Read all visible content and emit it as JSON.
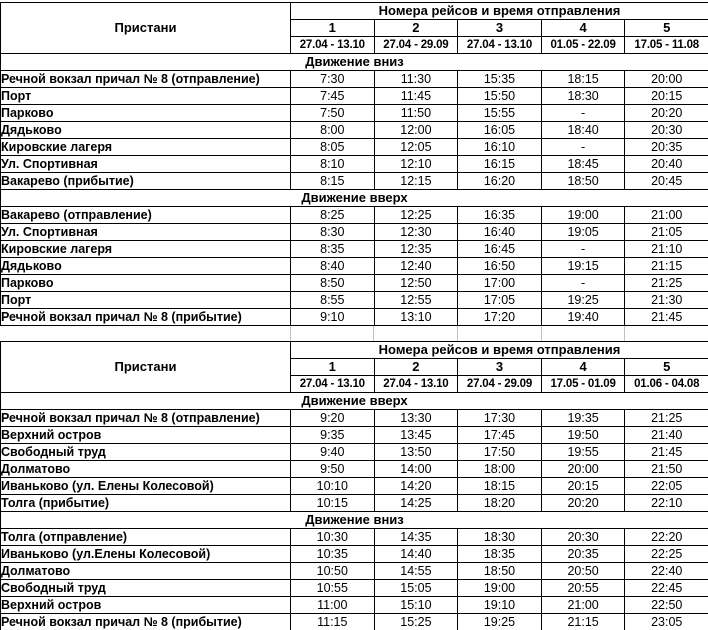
{
  "page": {
    "background": "#ffffff",
    "text_color": "#000000",
    "border_color": "#000000",
    "gap_gridline_color": "#c0c0c0"
  },
  "tables": [
    {
      "corner_label": "Пристани",
      "header_title": "Номера рейсов и время отправления",
      "trip_numbers": [
        "1",
        "2",
        "3",
        "4",
        "5"
      ],
      "date_ranges": [
        "27.04 - 13.10",
        "27.04 - 29.09",
        "27.04 - 13.10",
        "01.05 - 22.09",
        "17.05 - 11.08"
      ],
      "sections": [
        {
          "title": "Движение вниз",
          "rows": [
            {
              "station": "Речной вокзал причал № 8 (отправление)",
              "times": [
                "7:30",
                "11:30",
                "15:35",
                "18:15",
                "20:00"
              ]
            },
            {
              "station": "Порт",
              "times": [
                "7:45",
                "11:45",
                "15:50",
                "18:30",
                "20:15"
              ]
            },
            {
              "station": "Парково",
              "times": [
                "7:50",
                "11:50",
                "15:55",
                "-",
                "20:20"
              ]
            },
            {
              "station": "Дядьково",
              "times": [
                "8:00",
                "12:00",
                "16:05",
                "18:40",
                "20:30"
              ]
            },
            {
              "station": "Кировские лагеря",
              "times": [
                "8:05",
                "12:05",
                "16:10",
                "-",
                "20:35"
              ]
            },
            {
              "station": "Ул. Спортивная",
              "times": [
                "8:10",
                "12:10",
                "16:15",
                "18:45",
                "20:40"
              ]
            },
            {
              "station": "Вакарево (прибытие)",
              "times": [
                "8:15",
                "12:15",
                "16:20",
                "18:50",
                "20:45"
              ]
            }
          ]
        },
        {
          "title": "Движение вверх",
          "rows": [
            {
              "station": "Вакарево (отправление)",
              "times": [
                "8:25",
                "12:25",
                "16:35",
                "19:00",
                "21:00"
              ]
            },
            {
              "station": "Ул. Спортивная",
              "times": [
                "8:30",
                "12:30",
                "16:40",
                "19:05",
                "21:05"
              ]
            },
            {
              "station": "Кировские лагеря",
              "times": [
                "8:35",
                "12:35",
                "16:45",
                "-",
                "21:10"
              ]
            },
            {
              "station": "Дядьково",
              "times": [
                "8:40",
                "12:40",
                "16:50",
                "19:15",
                "21:15"
              ]
            },
            {
              "station": "Парково",
              "times": [
                "8:50",
                "12:50",
                "17:00",
                "-",
                "21:25"
              ]
            },
            {
              "station": "Порт",
              "times": [
                "8:55",
                "12:55",
                "17:05",
                "19:25",
                "21:30"
              ]
            },
            {
              "station": "Речной вокзал причал № 8 (прибытие)",
              "times": [
                "9:10",
                "13:10",
                "17:20",
                "19:40",
                "21:45"
              ]
            }
          ]
        }
      ]
    },
    {
      "corner_label": "Пристани",
      "header_title": "Номера рейсов и время отправления",
      "trip_numbers": [
        "1",
        "2",
        "3",
        "4",
        "5"
      ],
      "date_ranges": [
        "27.04 - 13.10",
        "27.04 - 13.10",
        "27.04 - 29.09",
        "17.05 - 01.09",
        "01.06 - 04.08"
      ],
      "sections": [
        {
          "title": "Движение вверх",
          "rows": [
            {
              "station": "Речной вокзал причал № 8 (отправление)",
              "times": [
                "9:20",
                "13:30",
                "17:30",
                "19:35",
                "21:25"
              ]
            },
            {
              "station": "Верхний остров",
              "times": [
                "9:35",
                "13:45",
                "17:45",
                "19:50",
                "21:40"
              ]
            },
            {
              "station": "Свободный труд",
              "times": [
                "9:40",
                "13:50",
                "17:50",
                "19:55",
                "21:45"
              ]
            },
            {
              "station": "Долматово",
              "times": [
                "9:50",
                "14:00",
                "18:00",
                "20:00",
                "21:50"
              ]
            },
            {
              "station": "Иваньково (ул. Елены Колесовой)",
              "times": [
                "10:10",
                "14:20",
                "18:15",
                "20:15",
                "22:05"
              ]
            },
            {
              "station": "Толга (прибытие)",
              "times": [
                "10:15",
                "14:25",
                "18:20",
                "20:20",
                "22:10"
              ]
            }
          ]
        },
        {
          "title": "Движение вниз",
          "rows": [
            {
              "station": "Толга (отправление)",
              "times": [
                "10:30",
                "14:35",
                "18:30",
                "20:30",
                "22:20"
              ]
            },
            {
              "station": "Иваньково (ул.Елены Колесовой)",
              "times": [
                "10:35",
                "14:40",
                "18:35",
                "20:35",
                "22:25"
              ]
            },
            {
              "station": "Долматово",
              "times": [
                "10:50",
                "14:55",
                "18:50",
                "20:50",
                "22:40"
              ]
            },
            {
              "station": "Свободный труд",
              "times": [
                "10:55",
                "15:05",
                "19:00",
                "20:55",
                "22:45"
              ]
            },
            {
              "station": "Верхний остров",
              "times": [
                "11:00",
                "15:10",
                "19:10",
                "21:00",
                "22:50"
              ]
            },
            {
              "station": "Речной вокзал причал № 8 (прибытие)",
              "times": [
                "11:15",
                "15:25",
                "19:25",
                "21:15",
                "23:05"
              ]
            }
          ]
        }
      ]
    }
  ]
}
